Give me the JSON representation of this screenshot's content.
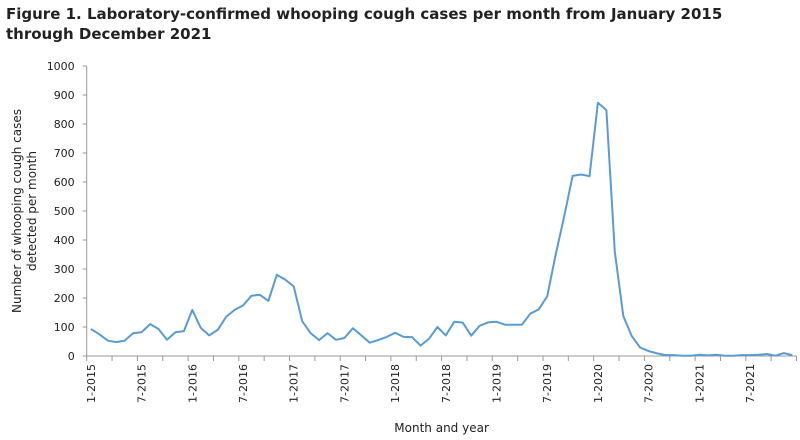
{
  "chart_data": {
    "type": "line",
    "title": "Figure 1. Laboratory-confirmed whooping cough cases  per month from January 2015 through December 2021",
    "xlabel": "Month and year",
    "ylabel_lines": [
      "Number of whooping cough cases",
      "detected per month"
    ],
    "ylim": [
      0,
      1000
    ],
    "yticks": [
      0,
      100,
      200,
      300,
      400,
      500,
      600,
      700,
      800,
      900,
      1000
    ],
    "xtick_labels": [
      "1-2015",
      "7-2015",
      "1-2016",
      "7-2016",
      "1-2017",
      "7-2017",
      "1-2018",
      "7-2018",
      "1-2019",
      "7-2019",
      "1-2020",
      "7-2020",
      "1-2021",
      "7-2021"
    ],
    "grid": false,
    "legend": "none",
    "line_color": "#5b9bd5",
    "x_start": "1-2015",
    "x_end": "12-2021",
    "values": [
      93,
      75,
      53,
      48,
      53,
      79,
      82,
      110,
      93,
      56,
      82,
      86,
      159,
      97,
      71,
      90,
      135,
      159,
      174,
      208,
      211,
      190,
      280,
      263,
      240,
      120,
      79,
      55,
      79,
      56,
      62,
      96,
      71,
      46,
      55,
      66,
      80,
      66,
      65,
      36,
      59,
      100,
      71,
      118,
      115,
      70,
      104,
      116,
      118,
      108,
      108,
      108,
      146,
      161,
      206,
      350,
      480,
      621,
      626,
      620,
      873,
      848,
      360,
      138,
      69,
      29,
      17,
      9,
      3,
      3,
      1,
      1,
      4,
      2,
      4,
      1,
      1,
      3,
      3,
      4,
      7,
      1,
      10,
      3
    ]
  }
}
